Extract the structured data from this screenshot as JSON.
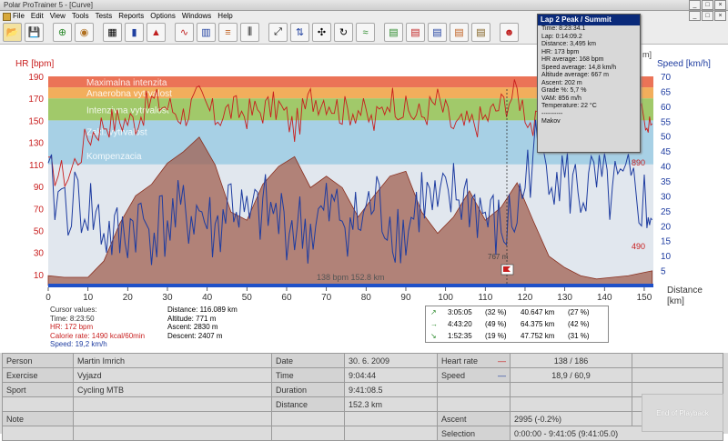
{
  "window": {
    "title": "Polar ProTrainer 5 - [Curve]"
  },
  "menu": [
    "File",
    "Edit",
    "View",
    "Tools",
    "Tests",
    "Reports",
    "Options",
    "Windows",
    "Help"
  ],
  "toolbar": [
    "open-icon",
    "save-icon",
    "add-exercise-icon",
    "ball-icon",
    "calendar-icon",
    "book-icon",
    "alert-icon",
    "curve-icon",
    "bar-icon",
    "sport-zones-icon",
    "laps-icon",
    "zoom-icon",
    "sync-icon",
    "marker-icon",
    "rotate-icon",
    "wave-icon",
    "report1-icon",
    "report2-icon",
    "report3-icon",
    "report4-icon",
    "report5-icon",
    "person-icon"
  ],
  "chart": {
    "left_axis_label": "HR [bpm]",
    "right_axis_label": "Speed [km/h]",
    "hidden_right_label": "m]",
    "x_axis_label_1": "Distance",
    "x_axis_label_2": "[km]",
    "zone_labels": [
      "Maximalna intenzita",
      "Anaerobna vytrvalost",
      "Intenzivna vytrvalost",
      "Zakl. vytrvalost",
      "Kompenzacia"
    ],
    "altitude_ticks": [
      "890",
      "490"
    ],
    "cursor_marker": "767 m",
    "bottom_readout": "138 bpm   152.8 km",
    "colors": {
      "hr": "#c81e1e",
      "speed": "#1e3ca0",
      "altitude_fill": "#a06050",
      "zone_max": "#e85a3a",
      "zone_anaer": "#f0a040",
      "zone_int": "#90c050",
      "zone_base": "#98c8e0",
      "zone_comp": "#c8d4e0"
    }
  },
  "chart_data": {
    "type": "line",
    "title": "",
    "xlabel": "Distance [km]",
    "ylabel": "HR [bpm]",
    "y2label": "Speed [km/h]",
    "xlim": [
      0,
      152.3
    ],
    "ylim": [
      0,
      190
    ],
    "y2lim": [
      0,
      70
    ],
    "x_ticks": [
      0,
      10,
      20,
      30,
      40,
      50,
      60,
      70,
      80,
      90,
      100,
      110,
      120,
      130,
      140,
      150
    ],
    "y_ticks": [
      10,
      30,
      50,
      70,
      90,
      110,
      130,
      150,
      170,
      190
    ],
    "y2_ticks": [
      5,
      10,
      15,
      20,
      25,
      30,
      35,
      40,
      45,
      50,
      55,
      60,
      65,
      70
    ],
    "legend": "none",
    "grid": false,
    "series": [
      {
        "name": "HR",
        "axis": "left",
        "x": [
          0,
          5,
          10,
          14,
          18,
          22,
          26,
          30,
          34,
          38,
          42,
          46,
          50,
          54,
          58,
          62,
          66,
          70,
          74,
          78,
          82,
          86,
          90,
          94,
          98,
          102,
          106,
          110,
          114,
          118,
          122,
          126,
          130,
          134,
          138,
          142,
          146,
          150,
          152
        ],
        "values": [
          105,
          100,
          135,
          148,
          150,
          150,
          168,
          163,
          155,
          170,
          153,
          160,
          156,
          160,
          163,
          142,
          170,
          170,
          158,
          161,
          147,
          172,
          158,
          154,
          168,
          144,
          146,
          152,
          164,
          176,
          143,
          151,
          146,
          158,
          150,
          157,
          154,
          150,
          147
        ]
      },
      {
        "name": "Speed",
        "axis": "right",
        "x": [
          0,
          5,
          10,
          14,
          18,
          22,
          26,
          30,
          34,
          38,
          42,
          46,
          50,
          54,
          58,
          62,
          66,
          70,
          74,
          78,
          82,
          86,
          90,
          94,
          98,
          102,
          106,
          110,
          114,
          118,
          122,
          126,
          130,
          134,
          138,
          142,
          146,
          150,
          152
        ],
        "values": [
          32,
          28,
          27,
          18,
          15,
          22,
          19,
          21,
          23,
          25,
          17,
          30,
          20,
          25,
          22,
          20,
          18,
          24,
          24,
          20,
          28,
          22,
          17,
          30,
          24,
          30,
          29,
          23,
          17,
          24,
          45,
          42,
          35,
          31,
          33,
          30,
          32,
          28,
          22
        ]
      },
      {
        "name": "Altitude",
        "axis": "hidden",
        "x": [
          0,
          4,
          10,
          14,
          18,
          22,
          26,
          30,
          34,
          38,
          42,
          46,
          50,
          54,
          58,
          62,
          66,
          70,
          74,
          78,
          82,
          86,
          90,
          94,
          98,
          102,
          106,
          110,
          114,
          118,
          122,
          126,
          130,
          134,
          138,
          142,
          146,
          150,
          152
        ],
        "values": [
          0.06,
          0.05,
          0.05,
          0.15,
          0.38,
          0.55,
          0.62,
          0.75,
          0.82,
          0.91,
          0.74,
          0.45,
          0.4,
          0.62,
          0.73,
          0.79,
          0.6,
          0.67,
          0.6,
          0.42,
          0.55,
          0.67,
          0.7,
          0.45,
          0.32,
          0.42,
          0.58,
          0.4,
          0.48,
          0.63,
          0.4,
          0.18,
          0.11,
          0.06,
          0.04,
          0.05,
          0.06,
          0.08,
          0.09
        ]
      }
    ]
  },
  "popup": {
    "title": "Lap 2 Peak / Summit",
    "lines": [
      "Time: 8:23:34.1",
      "Lap: 0:14:09.2",
      "Distance: 3,495 km",
      "HR: 173 bpm",
      "HR average: 168 bpm",
      "Speed average: 14,8 km/h",
      "Altitude average: 667 m",
      "Ascent: 202 m",
      "Grade %: 5,7 %",
      "VAM: 856 m/h",
      "Temperature: 22 °C",
      "----------",
      "Makov"
    ]
  },
  "cursor": {
    "heading": "Cursor values:",
    "time": "Time: 8:23:50",
    "hr": "HR: 172 bpm",
    "calories": "Calorie rate: 1490 kcal/60min",
    "speed": "Speed: 19,2 km/h"
  },
  "summary": {
    "distance": "Distance: 116.089 km",
    "altitude": "Altitude: 771 m",
    "ascent": "Ascent: 2830 m",
    "descent": "Descent: 2407 m"
  },
  "zones": [
    {
      "arrow": "↗",
      "time": "3:05:05",
      "pct": "(32 %)",
      "dist": "40.647 km",
      "dpct": "(27 %)"
    },
    {
      "arrow": "→",
      "time": "4:43:20",
      "pct": "(49 %)",
      "dist": "64.375 km",
      "dpct": "(42 %)"
    },
    {
      "arrow": "↘",
      "time": "1:52:35",
      "pct": "(19 %)",
      "dist": "47.752 km",
      "dpct": "(31 %)"
    }
  ],
  "table": {
    "person_label": "Person",
    "person": "Martin Imrich",
    "exercise_label": "Exercise",
    "exercise": "Vyjazd",
    "sport_label": "Sport",
    "sport": "Cycling MTB",
    "note_label": "Note",
    "date_label": "Date",
    "date": "30. 6. 2009",
    "time_label": "Time",
    "time": "9:04:44",
    "duration_label": "Duration",
    "duration": "9:41:08.5",
    "distance_label": "Distance",
    "distance": "152.3 km",
    "hr_label": "Heart rate",
    "hr": "138 / 186",
    "speed_label": "Speed",
    "speed": "18,9 / 60,9",
    "ascent_label": "Ascent",
    "ascent": "2995 (-0.2%)",
    "selection_label": "Selection",
    "selection": "0:00:00 - 9:41:05 (9:41:05.0)"
  },
  "playback_label": "End of Playback"
}
